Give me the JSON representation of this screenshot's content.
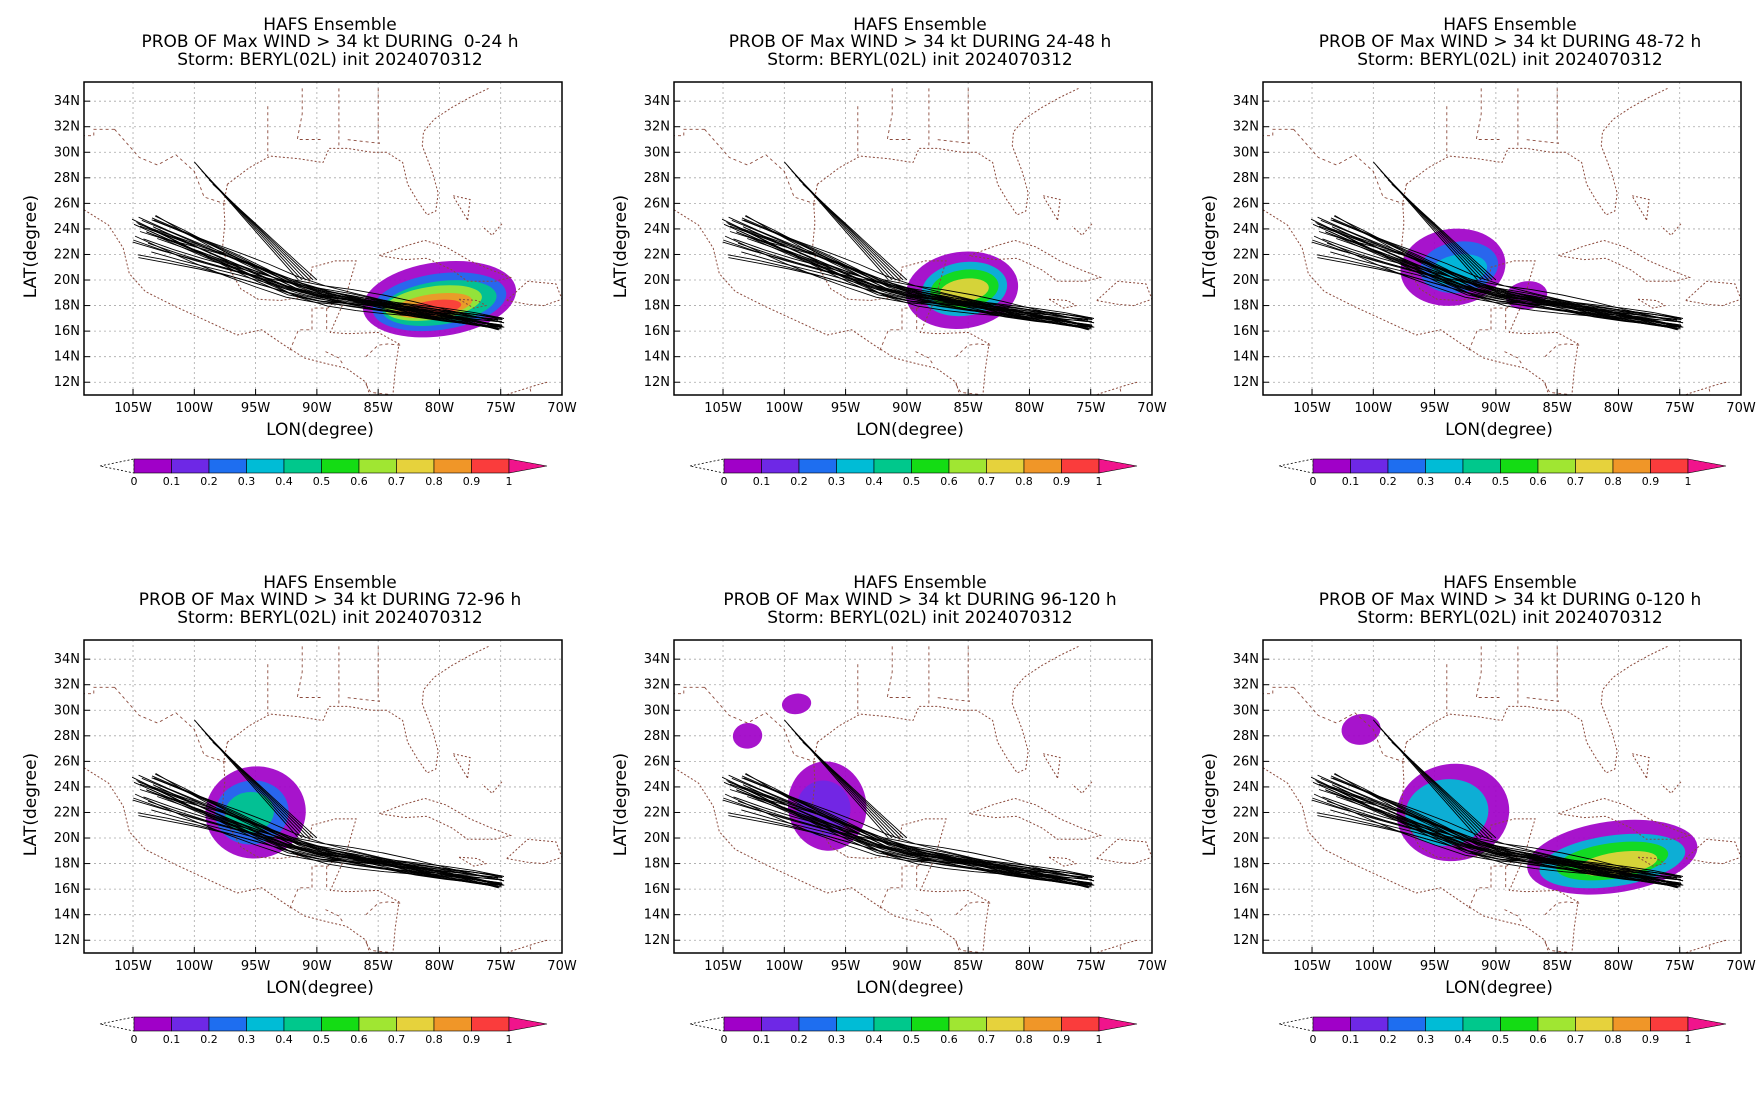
{
  "panels": [
    {
      "title": "HAFS Ensemble",
      "subtitle": "PROB OF Max WIND > 34 kt DURING  0-24 h",
      "storm_line": "Storm: BERYL(02L) init 2024070312",
      "xlabel": "LON(degree)",
      "ylabel": "LAT(degree)",
      "blobs": [
        {
          "level": 0.05,
          "lon": -80.0,
          "lat": 18.5,
          "rlon": 6.3,
          "rlat": 2.9
        },
        {
          "level": 0.2,
          "lon": -80.0,
          "lat": 18.3,
          "rlon": 5.5,
          "rlat": 2.2
        },
        {
          "level": 0.4,
          "lon": -80.0,
          "lat": 18.2,
          "rlon": 4.7,
          "rlat": 1.7
        },
        {
          "level": 0.6,
          "lon": -80.5,
          "lat": 18.2,
          "rlon": 4.0,
          "rlat": 1.3
        },
        {
          "level": 0.8,
          "lon": -80.5,
          "lat": 18.0,
          "rlon": 3.2,
          "rlat": 0.9
        },
        {
          "level": 0.95,
          "lon": -80.5,
          "lat": 17.8,
          "rlon": 2.3,
          "rlat": 0.6
        }
      ]
    },
    {
      "title": "HAFS Ensemble",
      "subtitle": "PROB OF Max WIND > 34 kt DURING 24-48 h",
      "storm_line": "Storm: BERYL(02L) init 2024070312",
      "xlabel": "LON(degree)",
      "ylabel": "LAT(degree)",
      "blobs": [
        {
          "level": 0.05,
          "lon": -85.5,
          "lat": 19.2,
          "rlon": 4.6,
          "rlat": 3.0
        },
        {
          "level": 0.3,
          "lon": -85.3,
          "lat": 19.3,
          "rlon": 3.5,
          "rlat": 2.1
        },
        {
          "level": 0.55,
          "lon": -85.3,
          "lat": 19.3,
          "rlon": 2.8,
          "rlat": 1.5
        },
        {
          "level": 0.75,
          "lon": -85.3,
          "lat": 19.2,
          "rlon": 2.0,
          "rlat": 0.9
        }
      ]
    },
    {
      "title": "HAFS Ensemble",
      "subtitle": "PROB OF Max WIND > 34 kt DURING 48-72 h",
      "storm_line": "Storm: BERYL(02L) init 2024070312",
      "xlabel": "LON(degree)",
      "ylabel": "LAT(degree)",
      "blobs": [
        {
          "level": 0.05,
          "lon": -93.5,
          "lat": 21.0,
          "rlon": 4.3,
          "rlat": 3.0
        },
        {
          "level": 0.05,
          "lon": -87.5,
          "lat": 18.8,
          "rlon": 1.7,
          "rlat": 1.1
        },
        {
          "level": 0.2,
          "lon": -93.0,
          "lat": 21.0,
          "rlon": 3.2,
          "rlat": 2.0
        },
        {
          "level": 0.35,
          "lon": -93.0,
          "lat": 20.8,
          "rlon": 2.3,
          "rlat": 1.2
        }
      ]
    },
    {
      "title": "HAFS Ensemble",
      "subtitle": "PROB OF Max WIND > 34 kt DURING 72-96 h",
      "storm_line": "Storm: BERYL(02L) init 2024070312",
      "xlabel": "LON(degree)",
      "ylabel": "LAT(degree)",
      "blobs": [
        {
          "level": 0.05,
          "lon": -95.0,
          "lat": 22.0,
          "rlon": 4.1,
          "rlat": 3.6
        },
        {
          "level": 0.25,
          "lon": -95.3,
          "lat": 22.0,
          "rlon": 3.0,
          "rlat": 2.5
        },
        {
          "level": 0.45,
          "lon": -95.5,
          "lat": 22.0,
          "rlon": 2.0,
          "rlat": 1.6
        }
      ]
    },
    {
      "title": "HAFS Ensemble",
      "subtitle": "PROB OF Max WIND > 34 kt DURING 96-120 h",
      "storm_line": "Storm: BERYL(02L) init 2024070312",
      "xlabel": "LON(degree)",
      "ylabel": "LAT(degree)",
      "blobs": [
        {
          "level": 0.05,
          "lon": -96.5,
          "lat": 22.5,
          "rlon": 3.2,
          "rlat": 3.5
        },
        {
          "level": 0.05,
          "lon": -103.0,
          "lat": 28.0,
          "rlon": 1.2,
          "rlat": 1.0
        },
        {
          "level": 0.05,
          "lon": -99.0,
          "lat": 30.5,
          "rlon": 1.2,
          "rlat": 0.8
        },
        {
          "level": 0.15,
          "lon": -96.8,
          "lat": 22.3,
          "rlon": 2.2,
          "rlat": 2.2
        }
      ]
    },
    {
      "title": "HAFS Ensemble",
      "subtitle": "PROB OF Max WIND > 34 kt DURING 0-120 h",
      "storm_line": "Storm: BERYL(02L) init 2024070312",
      "xlabel": "LON(degree)",
      "ylabel": "LAT(degree)",
      "blobs": [
        {
          "level": 0.05,
          "lon": -93.5,
          "lat": 22.0,
          "rlon": 4.6,
          "rlat": 3.8
        },
        {
          "level": 0.05,
          "lon": -80.5,
          "lat": 18.5,
          "rlon": 7.0,
          "rlat": 2.8
        },
        {
          "level": 0.05,
          "lon": -101.0,
          "lat": 28.5,
          "rlon": 1.6,
          "rlat": 1.2
        },
        {
          "level": 0.3,
          "lon": -94.0,
          "lat": 22.0,
          "rlon": 3.4,
          "rlat": 2.6
        },
        {
          "level": 0.3,
          "lon": -80.5,
          "lat": 18.2,
          "rlon": 6.0,
          "rlat": 2.0
        },
        {
          "level": 0.55,
          "lon": -80.5,
          "lat": 18.2,
          "rlon": 4.6,
          "rlat": 1.4
        },
        {
          "level": 0.75,
          "lon": -80.0,
          "lat": 18.0,
          "rlon": 3.2,
          "rlat": 0.9
        }
      ]
    }
  ],
  "axes": {
    "lon_range": [
      -109,
      -70
    ],
    "lat_range": [
      11,
      35.5
    ],
    "lon_ticks": [
      "105W",
      "100W",
      "95W",
      "90W",
      "85W",
      "80W",
      "75W",
      "70W"
    ],
    "lon_tick_values": [
      -105,
      -100,
      -95,
      -90,
      -85,
      -80,
      -75,
      -70
    ],
    "lat_ticks": [
      "12N",
      "14N",
      "16N",
      "18N",
      "20N",
      "22N",
      "24N",
      "26N",
      "28N",
      "30N",
      "32N",
      "34N"
    ],
    "lat_tick_values": [
      12,
      14,
      16,
      18,
      20,
      22,
      24,
      26,
      28,
      30,
      32,
      34
    ]
  },
  "colorbar": {
    "labels": [
      "0",
      "0.1",
      "0.2",
      "0.3",
      "0.4",
      "0.5",
      "0.6",
      "0.7",
      "0.8",
      "0.9",
      "1"
    ],
    "colors": [
      "#a000c8",
      "#6e28e6",
      "#1e6ef0",
      "#00bcd6",
      "#00c88c",
      "#14dc14",
      "#a0e632",
      "#e6d23c",
      "#f09628",
      "#fa3c3c",
      "#f0148c"
    ]
  },
  "track_colors": {
    "track": "#000000",
    "coast": "#8b4a3c",
    "grid": "#a8a8a8"
  }
}
